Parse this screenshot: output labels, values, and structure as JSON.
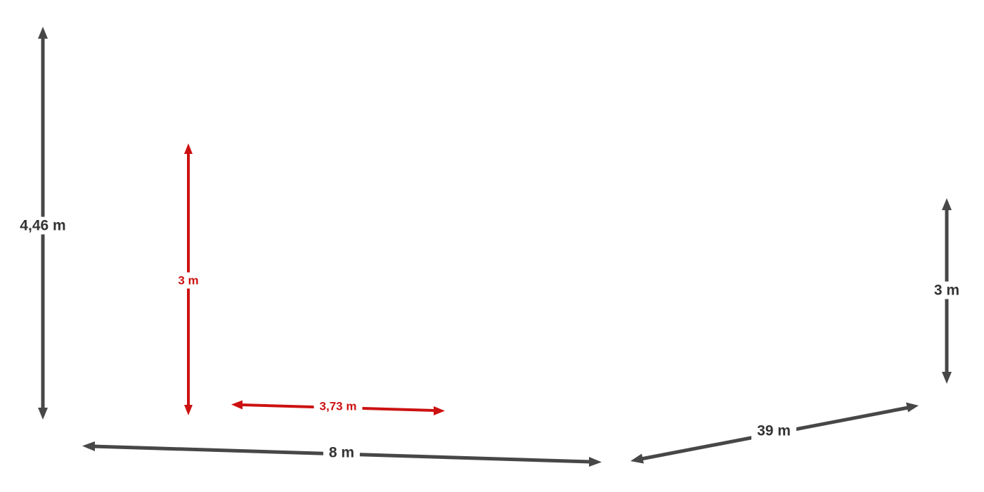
{
  "colors": {
    "gray": "#474747",
    "red": "#cc1111",
    "background": "#ffffff"
  },
  "dimensions": {
    "left_height": {
      "label": "4,46 m",
      "color": "gray"
    },
    "inner_height": {
      "label": "3 m",
      "color": "red"
    },
    "inner_width": {
      "label": "3,73 m",
      "color": "red"
    },
    "front_length": {
      "label": "8 m",
      "color": "gray"
    },
    "side_length": {
      "label": "39 m",
      "color": "gray"
    },
    "right_height": {
      "label": "3 m",
      "color": "gray"
    }
  }
}
